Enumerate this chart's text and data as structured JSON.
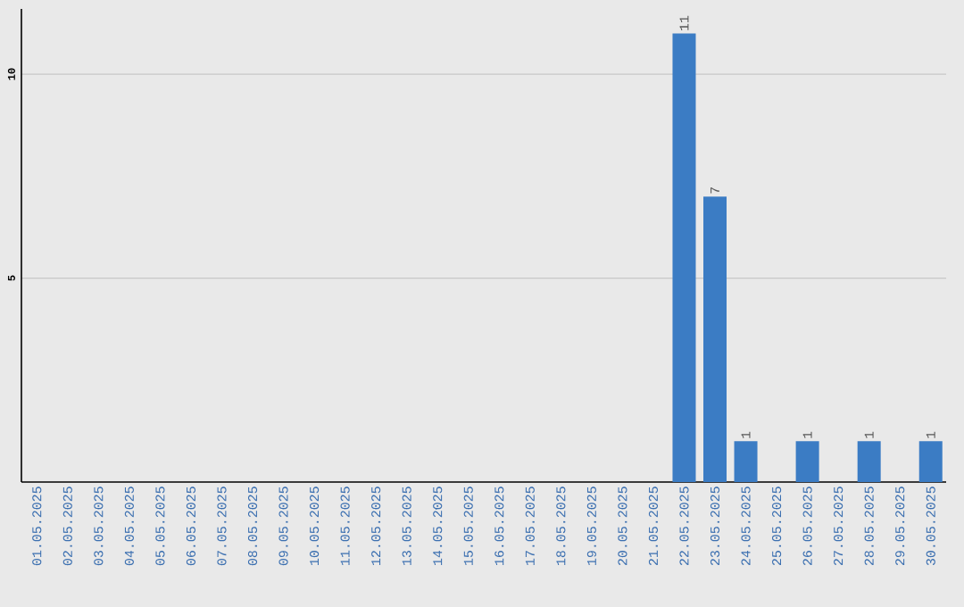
{
  "chart_data": {
    "type": "bar",
    "categories": [
      "01.05.2025",
      "02.05.2025",
      "03.05.2025",
      "04.05.2025",
      "05.05.2025",
      "06.05.2025",
      "07.05.2025",
      "08.05.2025",
      "09.05.2025",
      "10.05.2025",
      "11.05.2025",
      "12.05.2025",
      "13.05.2025",
      "14.05.2025",
      "15.05.2025",
      "16.05.2025",
      "17.05.2025",
      "18.05.2025",
      "19.05.2025",
      "20.05.2025",
      "21.05.2025",
      "22.05.2025",
      "23.05.2025",
      "24.05.2025",
      "25.05.2025",
      "26.05.2025",
      "27.05.2025",
      "28.05.2025",
      "29.05.2025",
      "30.05.2025"
    ],
    "values": [
      0,
      0,
      0,
      0,
      0,
      0,
      0,
      0,
      0,
      0,
      0,
      0,
      0,
      0,
      0,
      0,
      0,
      0,
      0,
      0,
      0,
      11,
      7,
      1,
      0,
      1,
      0,
      1,
      0,
      1
    ],
    "value_labels": [
      null,
      null,
      null,
      null,
      null,
      null,
      null,
      null,
      null,
      null,
      null,
      null,
      null,
      null,
      null,
      null,
      null,
      null,
      null,
      null,
      null,
      "11",
      "7",
      "1",
      null,
      "1",
      null,
      "1",
      null,
      "1"
    ],
    "color": "#3b7cc4",
    "ylim": [
      0,
      11.6
    ],
    "yticks": [
      5,
      10
    ],
    "grid": "y"
  }
}
